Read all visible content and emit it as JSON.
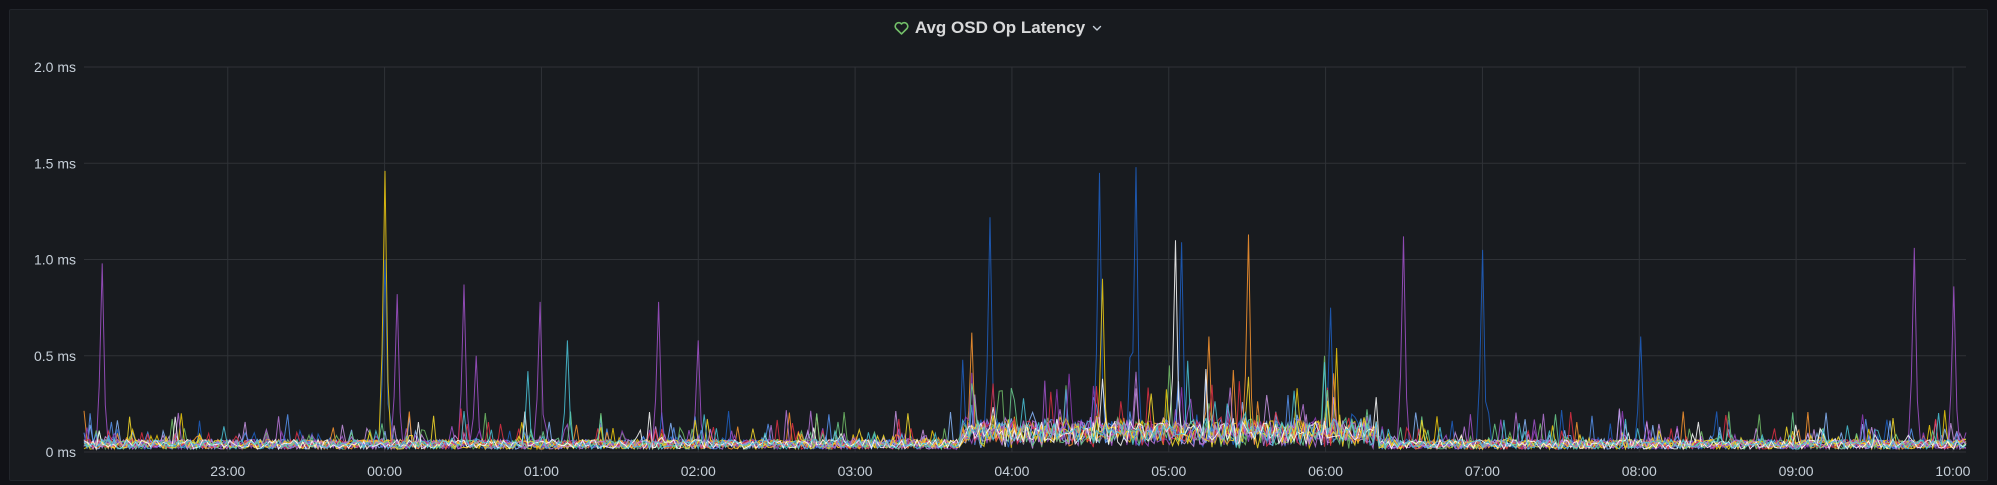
{
  "panel": {
    "title": "Avg OSD Op Latency",
    "status_color": "#73bf69"
  },
  "chart_data": {
    "type": "line",
    "title": "Avg OSD Op Latency",
    "ylim": [
      0,
      2.0
    ],
    "y_unit": "ms",
    "y_ticks": [
      {
        "value": 0,
        "label": "0 ms"
      },
      {
        "value": 0.5,
        "label": "0.5 ms"
      },
      {
        "value": 1.0,
        "label": "1.0 ms"
      },
      {
        "value": 1.5,
        "label": "1.5 ms"
      },
      {
        "value": 2.0,
        "label": "2.0 ms"
      }
    ],
    "x_range": [
      "22:05",
      "10:05"
    ],
    "x_ticks": [
      "23:00",
      "00:00",
      "01:00",
      "02:00",
      "03:00",
      "04:00",
      "05:00",
      "06:00",
      "07:00",
      "08:00",
      "09:00",
      "10:00"
    ],
    "grid": true,
    "legend": "none",
    "series_colors": [
      "#1f60c4",
      "#a352cc",
      "#8ab8ff",
      "#ca95e5",
      "#73bf69",
      "#5794f2",
      "#f2cc0c",
      "#ff9830",
      "#8f3bb8",
      "#e02f44",
      "#6ccf8e",
      "#fade2a",
      "#b877d9",
      "#ffffff",
      "#4bc4d9"
    ],
    "series_peaks": [
      {
        "color": "#f2cc0c",
        "peaks": [
          [
            "00:00",
            1.46
          ],
          [
            "04:35",
            0.9
          ]
        ]
      },
      {
        "color": "#1f60c4",
        "peaks": [
          [
            "00:00",
            1.0
          ],
          [
            "03:52",
            1.22
          ],
          [
            "04:33",
            1.45
          ],
          [
            "04:48",
            1.48
          ],
          [
            "05:05",
            1.09
          ],
          [
            "06:02",
            0.75
          ],
          [
            "07:00",
            1.05
          ],
          [
            "08:00",
            0.6
          ]
        ]
      },
      {
        "color": "#a352cc",
        "peaks": [
          [
            "22:12",
            0.98
          ],
          [
            "00:05",
            0.82
          ],
          [
            "00:30",
            0.87
          ],
          [
            "01:00",
            0.78
          ],
          [
            "01:45",
            0.78
          ],
          [
            "02:00",
            0.58
          ],
          [
            "06:30",
            1.12
          ],
          [
            "09:45",
            1.06
          ],
          [
            "10:00",
            0.86
          ],
          [
            "00:35",
            0.5
          ]
        ]
      },
      {
        "color": "#4bc4d9",
        "peaks": [
          [
            "00:55",
            0.42
          ],
          [
            "01:10",
            0.58
          ]
        ]
      },
      {
        "color": "#ff9830",
        "peaks": [
          [
            "03:45",
            0.62
          ],
          [
            "05:30",
            1.13
          ],
          [
            "05:15",
            0.6
          ]
        ]
      },
      {
        "color": "#ffffff",
        "peaks": [
          [
            "05:02",
            1.1
          ]
        ]
      },
      {
        "color": "#73bf69",
        "peaks": [
          [
            "05:00",
            0.45
          ],
          [
            "06:00",
            0.5
          ]
        ]
      }
    ]
  }
}
